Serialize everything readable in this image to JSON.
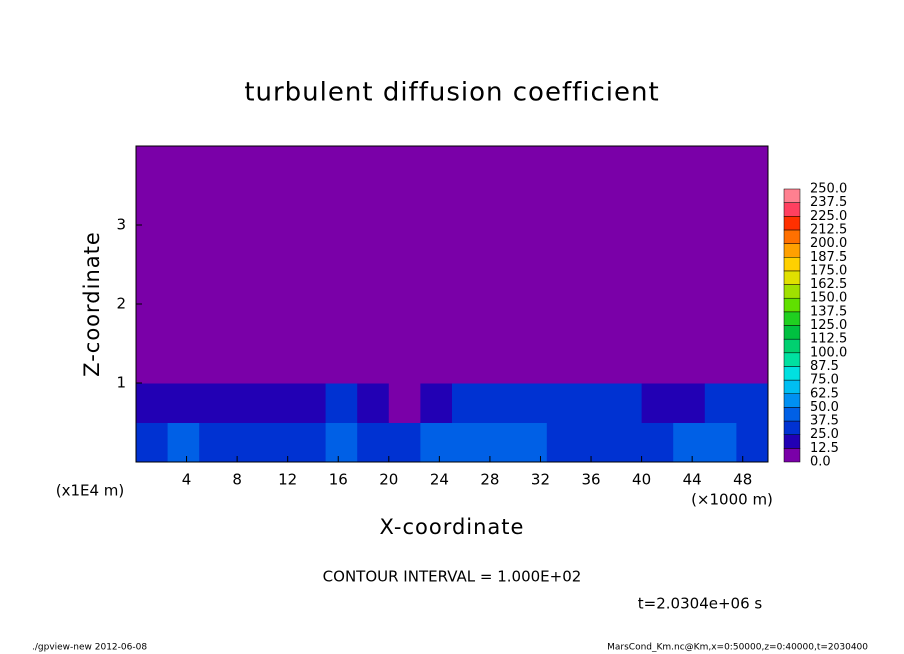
{
  "chart_data": {
    "type": "heatmap",
    "title": "turbulent diffusion coefficient",
    "xlabel": "X-coordinate",
    "ylabel": "Z-coordinate",
    "xunit": "(×1000 m)",
    "yunit": "(x1E4 m)",
    "annotation": "CONTOUR INTERVAL = 1.000E+02",
    "time_label": "t=2.0304e+06 s",
    "footer_left": "./gpview-new  2012-06-08",
    "footer_right": "MarsCond_Km.nc@Km,x=0:50000,z=0:40000,t=2030400",
    "xlim": [
      0,
      50
    ],
    "ylim": [
      0,
      4
    ],
    "xticks": [
      4,
      8,
      12,
      16,
      20,
      24,
      28,
      32,
      36,
      40,
      44,
      48
    ],
    "yticks": [
      1,
      2,
      3
    ],
    "xbins": [
      0,
      2.5,
      5,
      7.5,
      10,
      12.5,
      15,
      17.5,
      20,
      22.5,
      25,
      27.5,
      30,
      32.5,
      35,
      37.5,
      40,
      42.5,
      45,
      47.5,
      50
    ],
    "ybins": [
      0,
      0.5,
      1,
      1.5,
      2,
      2.5,
      3,
      3.5,
      4
    ],
    "z": [
      [
        30,
        38,
        35,
        32,
        28,
        34,
        40,
        36,
        30,
        42,
        38,
        40,
        44,
        36,
        32,
        30,
        34,
        38,
        40,
        35
      ],
      [
        22,
        20,
        18,
        16,
        15,
        20,
        25,
        18,
        12,
        20,
        28,
        30,
        32,
        30,
        28,
        25,
        20,
        22,
        30,
        32
      ],
      [
        0,
        0,
        0,
        0,
        0,
        0,
        0,
        0,
        0,
        0,
        0,
        0,
        0,
        0,
        0,
        0,
        0,
        0,
        0,
        0
      ],
      [
        0,
        0,
        0,
        0,
        0,
        0,
        0,
        0,
        0,
        0,
        0,
        0,
        0,
        0,
        0,
        0,
        0,
        0,
        0,
        0
      ],
      [
        0,
        0,
        0,
        0,
        0,
        0,
        0,
        0,
        0,
        0,
        0,
        0,
        0,
        0,
        0,
        0,
        0,
        0,
        0,
        0
      ],
      [
        0,
        0,
        0,
        0,
        0,
        0,
        0,
        0,
        0,
        0,
        0,
        0,
        0,
        0,
        0,
        0,
        0,
        0,
        0,
        0
      ],
      [
        0,
        0,
        0,
        0,
        0,
        0,
        0,
        0,
        0,
        0,
        0,
        0,
        0,
        0,
        0,
        0,
        0,
        0,
        0,
        0
      ],
      [
        0,
        0,
        0,
        0,
        0,
        0,
        0,
        0,
        0,
        0,
        0,
        0,
        0,
        0,
        0,
        0,
        0,
        0,
        0,
        0
      ]
    ],
    "levels": [
      {
        "value": 0,
        "label": "0.0"
      },
      {
        "value": 12.5,
        "label": "12.5"
      },
      {
        "value": 25,
        "label": "25.0"
      },
      {
        "value": 37.5,
        "label": "37.5"
      },
      {
        "value": 50,
        "label": "50.0"
      },
      {
        "value": 62.5,
        "label": "62.5"
      },
      {
        "value": 75,
        "label": "75.0"
      },
      {
        "value": 87.5,
        "label": "87.5"
      },
      {
        "value": 100,
        "label": "100.0"
      },
      {
        "value": 112.5,
        "label": "112.5"
      },
      {
        "value": 125,
        "label": "125.0"
      },
      {
        "value": 137.5,
        "label": "137.5"
      },
      {
        "value": 150,
        "label": "150.0"
      },
      {
        "value": 162.5,
        "label": "162.5"
      },
      {
        "value": 175,
        "label": "175.0"
      },
      {
        "value": 187.5,
        "label": "187.5"
      },
      {
        "value": 200,
        "label": "200.0"
      },
      {
        "value": 212.5,
        "label": "212.5"
      },
      {
        "value": 225,
        "label": "225.0"
      },
      {
        "value": 237.5,
        "label": "237.5"
      },
      {
        "value": 250,
        "label": "250.0"
      }
    ],
    "colors": [
      "#7a00a8",
      "#2200b4",
      "#0032d2",
      "#0060e6",
      "#0090f2",
      "#00bef2",
      "#00e0e0",
      "#00e0a0",
      "#00d070",
      "#00c040",
      "#20d020",
      "#60e000",
      "#a0e000",
      "#e0e000",
      "#ffd000",
      "#ffa000",
      "#ff7000",
      "#ff3000",
      "#ff4060",
      "#ff8090"
    ]
  }
}
